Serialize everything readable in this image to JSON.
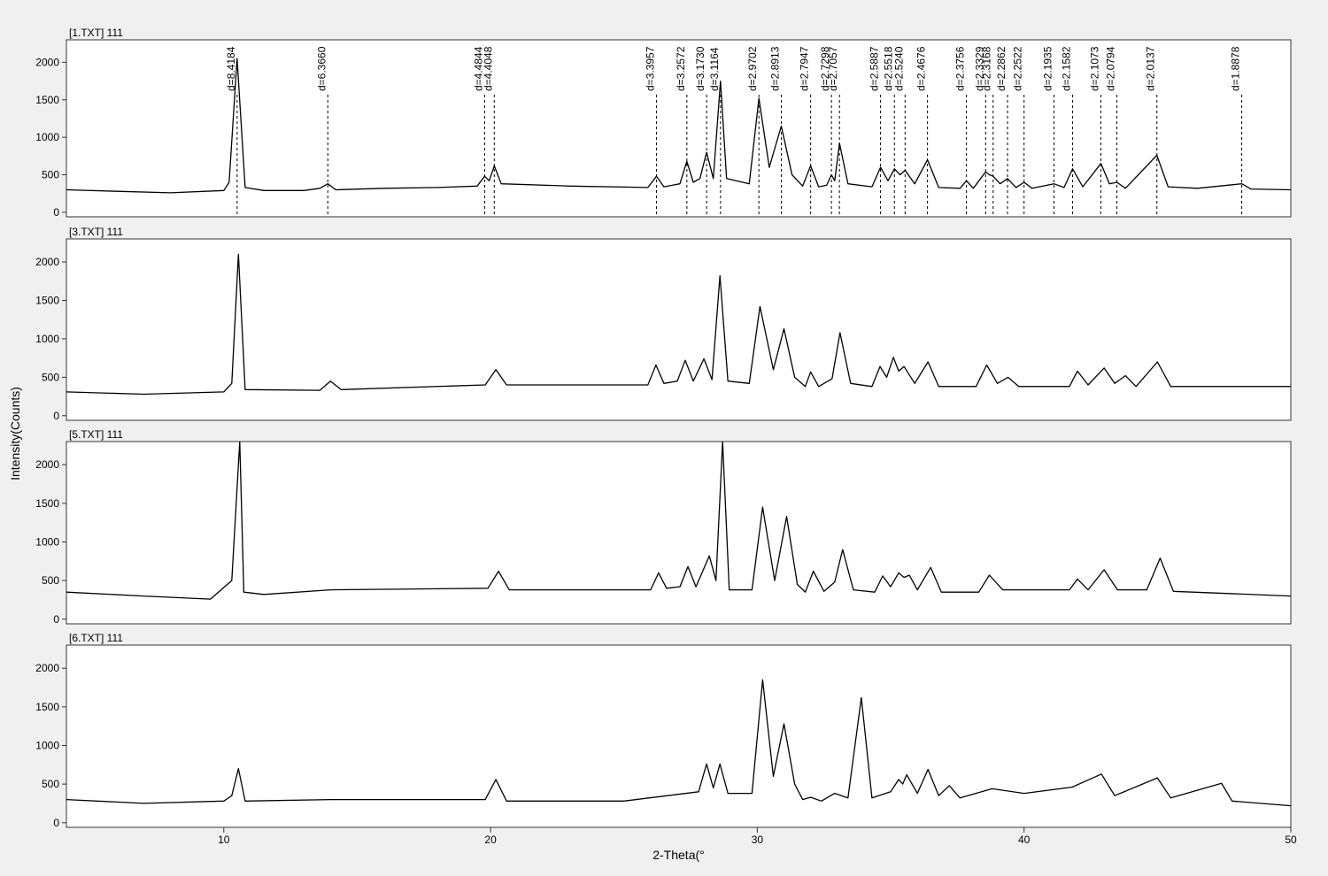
{
  "chart_data": [
    {
      "type": "line",
      "title": "[1.TXT] 111",
      "ylabel": "Intensity(Counts)",
      "xlim": [
        4.1,
        50
      ],
      "ylim": [
        -60,
        2300
      ],
      "yticks": [
        0,
        500,
        1000,
        1500,
        2000
      ],
      "color": "#000000",
      "x": [
        4.1,
        6,
        8,
        10,
        10.2,
        10.5,
        10.8,
        11.5,
        13,
        13.6,
        13.9,
        14.2,
        16,
        18,
        19.5,
        19.78,
        19.95,
        20.14,
        20.4,
        23,
        25.9,
        26.22,
        26.5,
        27.1,
        27.36,
        27.6,
        27.85,
        28.1,
        28.35,
        28.62,
        28.85,
        29.7,
        30.06,
        30.45,
        30.9,
        31.3,
        31.7,
        32.0,
        32.3,
        32.6,
        32.78,
        32.9,
        33.08,
        33.4,
        34.3,
        34.62,
        34.9,
        35.14,
        35.35,
        35.54,
        35.9,
        36.38,
        36.8,
        37.6,
        37.84,
        38.1,
        38.56,
        38.7,
        38.84,
        39.1,
        39.38,
        39.7,
        40.0,
        40.3,
        41.12,
        41.5,
        41.82,
        42.2,
        42.88,
        43.2,
        43.48,
        43.8,
        44.98,
        45.4,
        46.5,
        48.16,
        48.5,
        50
      ],
      "values": [
        300,
        280,
        260,
        290,
        400,
        2050,
        330,
        290,
        290,
        320,
        380,
        300,
        320,
        330,
        350,
        480,
        420,
        620,
        380,
        350,
        330,
        480,
        340,
        380,
        680,
        400,
        450,
        800,
        450,
        1750,
        450,
        380,
        1520,
        600,
        1150,
        500,
        350,
        620,
        340,
        360,
        500,
        420,
        920,
        380,
        340,
        600,
        420,
        580,
        500,
        560,
        380,
        700,
        330,
        320,
        420,
        320,
        540,
        500,
        480,
        380,
        450,
        330,
        400,
        320,
        380,
        330,
        580,
        340,
        650,
        380,
        400,
        320,
        760,
        340,
        320,
        380,
        310,
        300
      ],
      "annotations": [
        {
          "text": "d=8.4184",
          "x": 10.5
        },
        {
          "text": "d=6.3660",
          "x": 13.9
        },
        {
          "text": "d=4.4844",
          "x": 19.78
        },
        {
          "text": "d=4.4048",
          "x": 20.14
        },
        {
          "text": "d=3.3957",
          "x": 26.22
        },
        {
          "text": "d=3.2572",
          "x": 27.36
        },
        {
          "text": "d=3.1730",
          "x": 28.1
        },
        {
          "text": "d=3.1164",
          "x": 28.62
        },
        {
          "text": "d=2.9702",
          "x": 30.06
        },
        {
          "text": "d=2.8913",
          "x": 30.9
        },
        {
          "text": "d=2.7947",
          "x": 32.0
        },
        {
          "text": "d=2.7298",
          "x": 32.78
        },
        {
          "text": "d=2.7057",
          "x": 33.08
        },
        {
          "text": "d=2.5887",
          "x": 34.62
        },
        {
          "text": "d=2.5518",
          "x": 35.14
        },
        {
          "text": "d=2.5240",
          "x": 35.54
        },
        {
          "text": "d=2.4676",
          "x": 36.38
        },
        {
          "text": "d=2.3756",
          "x": 37.84
        },
        {
          "text": "d=2.3329",
          "x": 38.56
        },
        {
          "text": "d=2.3168",
          "x": 38.84
        },
        {
          "text": "d=2.2862",
          "x": 39.38
        },
        {
          "text": "d=2.2522",
          "x": 40.0
        },
        {
          "text": "d=2.1935",
          "x": 41.12
        },
        {
          "text": "d=2.1582",
          "x": 41.82
        },
        {
          "text": "d=2.1073",
          "x": 42.88
        },
        {
          "text": "d=2.0794",
          "x": 43.48
        },
        {
          "text": "d=2.0137",
          "x": 44.98
        },
        {
          "text": "d=1.8878",
          "x": 48.16
        }
      ]
    },
    {
      "type": "line",
      "title": "[3.TXT] 111",
      "xlim": [
        4.1,
        50
      ],
      "ylim": [
        -60,
        2300
      ],
      "yticks": [
        0,
        500,
        1000,
        1500,
        2000
      ],
      "color": "#000000",
      "x": [
        4.1,
        7,
        10,
        10.3,
        10.55,
        10.8,
        13.6,
        14,
        14.4,
        19.8,
        20.2,
        20.6,
        25.9,
        26.2,
        26.5,
        27.0,
        27.3,
        27.6,
        28.0,
        28.3,
        28.6,
        28.9,
        29.7,
        30.1,
        30.6,
        31.0,
        31.4,
        31.8,
        32.0,
        32.3,
        32.8,
        33.1,
        33.5,
        34.3,
        34.6,
        34.85,
        35.1,
        35.3,
        35.5,
        35.9,
        36.4,
        36.8,
        38.2,
        38.6,
        39.0,
        39.4,
        39.8,
        41.7,
        42.0,
        42.4,
        43.0,
        43.4,
        43.8,
        44.2,
        45.0,
        45.5,
        50
      ],
      "values": [
        310,
        280,
        310,
        420,
        2100,
        340,
        330,
        450,
        340,
        400,
        600,
        400,
        400,
        660,
        420,
        450,
        720,
        450,
        740,
        470,
        1820,
        450,
        420,
        1420,
        600,
        1130,
        500,
        380,
        570,
        380,
        480,
        1080,
        420,
        380,
        640,
        500,
        760,
        580,
        640,
        420,
        700,
        380,
        380,
        660,
        420,
        500,
        380,
        380,
        580,
        400,
        620,
        420,
        520,
        380,
        700,
        380,
        380
      ]
    },
    {
      "type": "line",
      "title": "[5.TXT] 111",
      "xlim": [
        4.1,
        50
      ],
      "ylim": [
        -60,
        2300
      ],
      "yticks": [
        0,
        500,
        1000,
        1500,
        2000
      ],
      "color": "#000000",
      "x": [
        4.1,
        7,
        9.5,
        10.3,
        10.6,
        10.75,
        11.5,
        14,
        19.9,
        20.3,
        20.7,
        26.0,
        26.3,
        26.6,
        27.1,
        27.4,
        27.7,
        28.2,
        28.45,
        28.7,
        28.95,
        29.8,
        30.2,
        30.65,
        31.1,
        31.5,
        31.8,
        32.1,
        32.5,
        32.9,
        33.2,
        33.6,
        34.4,
        34.7,
        35.0,
        35.3,
        35.5,
        35.7,
        36.0,
        36.5,
        36.9,
        38.3,
        38.7,
        39.2,
        41.7,
        42.0,
        42.4,
        43.0,
        43.5,
        44.6,
        45.1,
        45.6,
        50
      ],
      "values": [
        350,
        300,
        260,
        500,
        2300,
        350,
        320,
        380,
        400,
        620,
        380,
        380,
        600,
        400,
        420,
        680,
        420,
        820,
        500,
        2300,
        380,
        380,
        1450,
        500,
        1330,
        450,
        350,
        620,
        360,
        480,
        900,
        380,
        350,
        560,
        420,
        600,
        540,
        570,
        380,
        670,
        350,
        350,
        570,
        380,
        380,
        520,
        380,
        640,
        380,
        380,
        790,
        360,
        300
      ]
    },
    {
      "type": "line",
      "title": "[6.TXT] 111",
      "xlabel": "2-Theta(°",
      "xlim": [
        4.1,
        50
      ],
      "xticks": [
        10,
        20,
        30,
        40,
        50
      ],
      "ylim": [
        -60,
        2300
      ],
      "yticks": [
        0,
        500,
        1000,
        1500,
        2000
      ],
      "color": "#000000",
      "x": [
        4.1,
        7,
        10,
        10.3,
        10.55,
        10.8,
        14,
        19.8,
        20.2,
        20.6,
        25,
        27.8,
        28.1,
        28.35,
        28.6,
        28.9,
        29.8,
        30.2,
        30.6,
        31.0,
        31.4,
        31.7,
        32.0,
        32.4,
        32.9,
        33.4,
        33.9,
        34.3,
        35.0,
        35.3,
        35.45,
        35.6,
        36.0,
        36.4,
        36.8,
        37.2,
        37.6,
        38.8,
        40.0,
        41.8,
        42.9,
        43.4,
        45.0,
        45.5,
        47.4,
        47.8,
        50
      ],
      "values": [
        300,
        250,
        280,
        350,
        700,
        280,
        300,
        300,
        560,
        280,
        280,
        400,
        760,
        450,
        760,
        380,
        380,
        1850,
        600,
        1280,
        500,
        300,
        330,
        280,
        380,
        320,
        1620,
        320,
        400,
        560,
        500,
        620,
        380,
        690,
        350,
        480,
        320,
        440,
        380,
        460,
        630,
        350,
        580,
        320,
        510,
        280,
        220
      ]
    }
  ]
}
